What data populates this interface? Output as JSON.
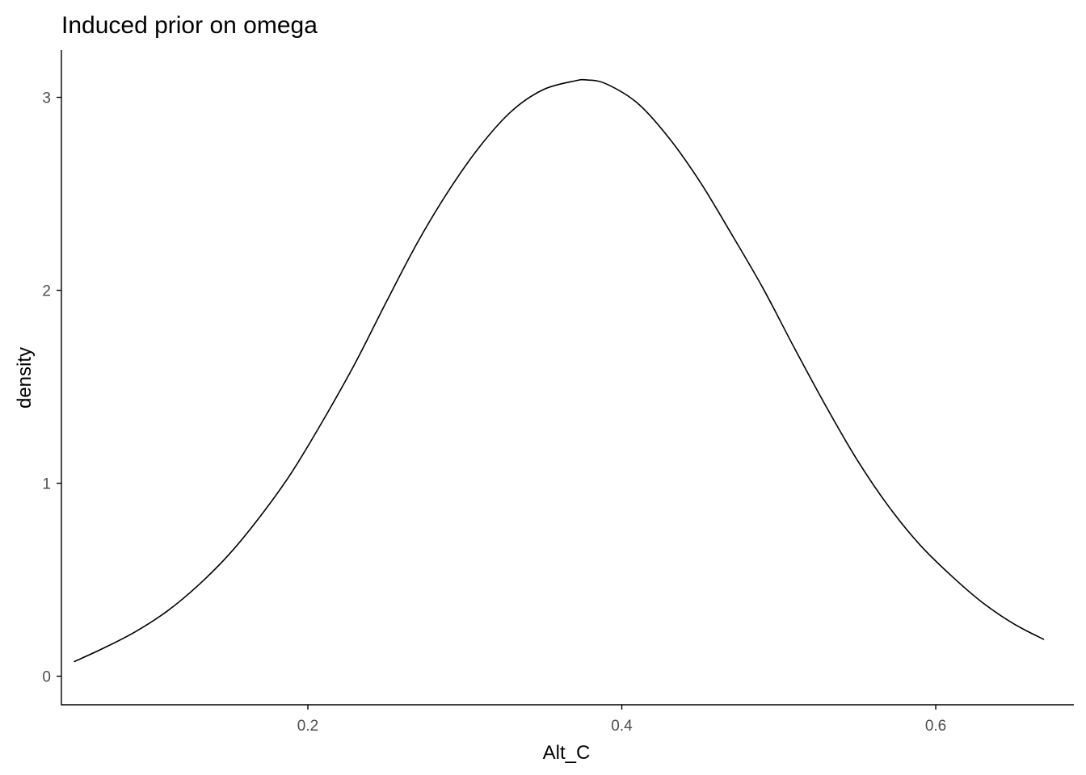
{
  "chart_data": {
    "type": "line",
    "title": "Induced prior on omega",
    "xlabel": "Alt_C",
    "ylabel": "density",
    "xlim": [
      0.043,
      0.688
    ],
    "ylim": [
      -0.148,
      3.245
    ],
    "x_ticks": [
      0.2,
      0.4,
      0.6
    ],
    "x_tick_labels": [
      "0.2",
      "0.4",
      "0.6"
    ],
    "y_ticks": [
      0,
      1,
      2,
      3
    ],
    "y_tick_labels": [
      "0",
      "1",
      "2",
      "3"
    ],
    "grid": false,
    "legend": "none",
    "line_color": "#000000",
    "series": [
      {
        "x": [
          0.051,
          0.07,
          0.09,
          0.11,
          0.13,
          0.15,
          0.17,
          0.19,
          0.21,
          0.23,
          0.25,
          0.27,
          0.29,
          0.31,
          0.33,
          0.35,
          0.37,
          0.378,
          0.39,
          0.41,
          0.43,
          0.45,
          0.47,
          0.49,
          0.51,
          0.53,
          0.55,
          0.57,
          0.59,
          0.61,
          0.63,
          0.65,
          0.669
        ],
        "values": [
          0.075,
          0.146,
          0.23,
          0.335,
          0.47,
          0.633,
          0.832,
          1.06,
          1.33,
          1.62,
          1.94,
          2.25,
          2.52,
          2.75,
          2.93,
          3.04,
          3.085,
          3.09,
          3.07,
          2.97,
          2.79,
          2.56,
          2.29,
          2.01,
          1.7,
          1.4,
          1.12,
          0.88,
          0.68,
          0.52,
          0.38,
          0.27,
          0.19
        ]
      }
    ]
  }
}
